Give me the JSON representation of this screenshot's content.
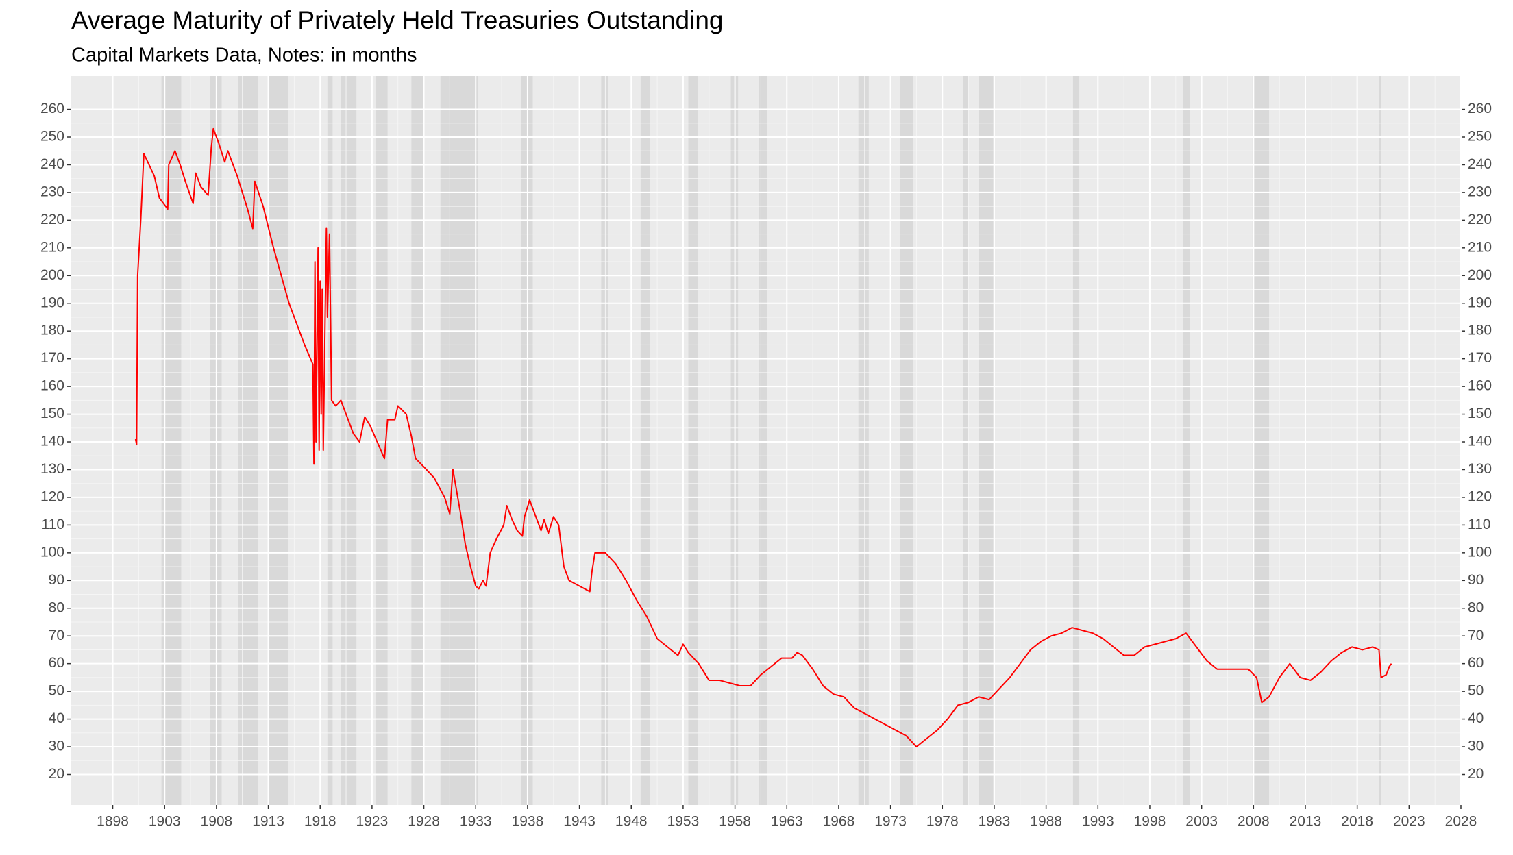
{
  "chart_data": {
    "type": "line",
    "title": "Average Maturity of Privately Held Treasuries Outstanding",
    "subtitle": "Capital Markets Data, Notes: in months",
    "xlim": [
      1894,
      2028
    ],
    "ylim": [
      9,
      272
    ],
    "xticks": [
      1898,
      1903,
      1908,
      1913,
      1918,
      1923,
      1928,
      1933,
      1938,
      1943,
      1948,
      1953,
      1958,
      1963,
      1968,
      1973,
      1978,
      1983,
      1988,
      1993,
      1998,
      2003,
      2008,
      2013,
      2018,
      2023,
      2028
    ],
    "yticks": [
      20,
      30,
      40,
      50,
      60,
      70,
      80,
      90,
      100,
      110,
      120,
      130,
      140,
      150,
      160,
      170,
      180,
      190,
      200,
      210,
      220,
      230,
      240,
      250,
      260
    ],
    "grid": true,
    "secondary_axis_labels": true,
    "recession_color": "#d9d9d9",
    "recessions": [
      [
        1902.7,
        1904.6
      ],
      [
        1907.4,
        1908.5
      ],
      [
        1910.1,
        1912.0
      ],
      [
        1913.0,
        1914.9
      ],
      [
        1918.7,
        1919.2
      ],
      [
        1920.0,
        1921.5
      ],
      [
        1923.4,
        1924.5
      ],
      [
        1926.8,
        1927.9
      ],
      [
        1929.6,
        1933.2
      ],
      [
        1937.4,
        1938.5
      ],
      [
        1945.1,
        1945.8
      ],
      [
        1948.9,
        1949.8
      ],
      [
        1953.5,
        1954.4
      ],
      [
        1957.6,
        1958.3
      ],
      [
        1960.3,
        1961.1
      ],
      [
        1969.9,
        1970.9
      ],
      [
        1973.9,
        1975.2
      ],
      [
        1980.0,
        1980.5
      ],
      [
        1981.5,
        1982.9
      ],
      [
        1990.6,
        1991.2
      ],
      [
        2001.2,
        2001.9
      ],
      [
        2007.9,
        2009.5
      ],
      [
        2020.1,
        2020.3
      ]
    ],
    "series": [
      {
        "color": "#ff0000",
        "x": [
          1900.2,
          1900.3,
          1900.4,
          1900.7,
          1901.0,
          1901.5,
          1902.0,
          1902.5,
          1903.3,
          1903.4,
          1904.0,
          1904.5,
          1905.0,
          1905.75,
          1906.0,
          1906.5,
          1907.2,
          1907.5,
          1907.7,
          1908.2,
          1908.8,
          1909.1,
          1910.0,
          1911.0,
          1911.5,
          1911.7,
          1912.5,
          1913.5,
          1915.0,
          1916.5,
          1917.3,
          1917.4,
          1917.5,
          1917.6,
          1917.8,
          1917.9,
          1918.0,
          1918.1,
          1918.2,
          1918.3,
          1918.6,
          1918.7,
          1918.9,
          1919.1,
          1919.5,
          1920.0,
          1920.7,
          1921.2,
          1921.8,
          1922.3,
          1922.8,
          1923.5,
          1924.2,
          1924.5,
          1925.2,
          1925.5,
          1926.3,
          1926.8,
          1927.2,
          1928.0,
          1929.0,
          1930.0,
          1930.5,
          1930.8,
          1931.5,
          1932.0,
          1932.5,
          1933.0,
          1933.3,
          1933.7,
          1934.0,
          1934.4,
          1935.0,
          1935.7,
          1936.0,
          1936.5,
          1937.0,
          1937.5,
          1937.7,
          1938.2,
          1938.8,
          1939.3,
          1939.6,
          1940.0,
          1940.5,
          1941.0,
          1941.5,
          1942.0,
          1943.0,
          1944.0,
          1944.2,
          1944.5,
          1945.5,
          1946.5,
          1947.5,
          1948.5,
          1949.5,
          1950.5,
          1951.5,
          1952.5,
          1953.0,
          1953.5,
          1954.5,
          1955.5,
          1956.5,
          1957.5,
          1958.5,
          1959.5,
          1960.5,
          1961.5,
          1962.5,
          1963.5,
          1964.0,
          1964.5,
          1965.5,
          1966.5,
          1967.5,
          1968.5,
          1969.5,
          1970.5,
          1971.5,
          1972.5,
          1973.5,
          1974.5,
          1975.5,
          1976.5,
          1977.5,
          1978.5,
          1979.5,
          1980.5,
          1981.5,
          1982.5,
          1983.5,
          1984.5,
          1985.5,
          1986.5,
          1987.5,
          1988.5,
          1989.5,
          1990.5,
          1991.5,
          1992.5,
          1993.5,
          1994.5,
          1995.5,
          1996.5,
          1997.5,
          1998.5,
          1999.5,
          2000.5,
          2001.5,
          2002.5,
          2003.5,
          2004.5,
          2005.5,
          2006.5,
          2007.5,
          2008.3,
          2008.8,
          2009.5,
          2010.5,
          2011.5,
          2012.5,
          2013.5,
          2014.5,
          2015.5,
          2016.5,
          2017.5,
          2018.5,
          2019.5,
          2020.1,
          2020.3,
          2020.8,
          2021.1,
          2021.3
        ],
        "values": [
          141,
          139,
          200,
          220,
          244,
          240,
          236,
          228,
          224,
          240,
          245,
          240,
          234,
          226,
          237,
          232,
          229,
          246,
          253,
          248,
          241,
          245,
          236,
          224,
          217,
          234,
          225,
          210,
          190,
          175,
          168,
          132,
          205,
          140,
          210,
          137,
          198,
          150,
          195,
          137,
          217,
          185,
          215,
          155,
          153,
          155,
          148,
          143,
          140,
          149,
          146,
          140,
          134,
          148,
          148,
          153,
          150,
          142,
          134,
          131,
          127,
          120,
          114,
          130,
          115,
          103,
          95,
          88,
          87,
          90,
          88,
          100,
          105,
          110,
          117,
          112,
          108,
          106,
          113,
          119,
          113,
          108,
          112,
          107,
          113,
          110,
          95,
          90,
          88,
          86,
          93,
          100,
          100,
          96,
          90,
          83,
          77,
          69,
          66,
          63,
          67,
          64,
          60,
          54,
          54,
          53,
          52,
          52,
          56,
          59,
          62,
          62,
          64,
          63,
          58,
          52,
          49,
          48,
          44,
          42,
          40,
          38,
          36,
          34,
          30,
          33,
          36,
          40,
          45,
          46,
          48,
          47,
          51,
          55,
          60,
          65,
          68,
          70,
          71,
          73,
          72,
          71,
          69,
          66,
          63,
          63,
          66,
          67,
          68,
          69,
          71,
          66,
          61,
          58,
          58,
          58,
          58,
          55,
          46,
          48,
          55,
          60,
          55,
          54,
          57,
          61,
          64,
          66,
          65,
          66,
          65,
          55,
          56,
          59,
          60
        ]
      }
    ]
  }
}
